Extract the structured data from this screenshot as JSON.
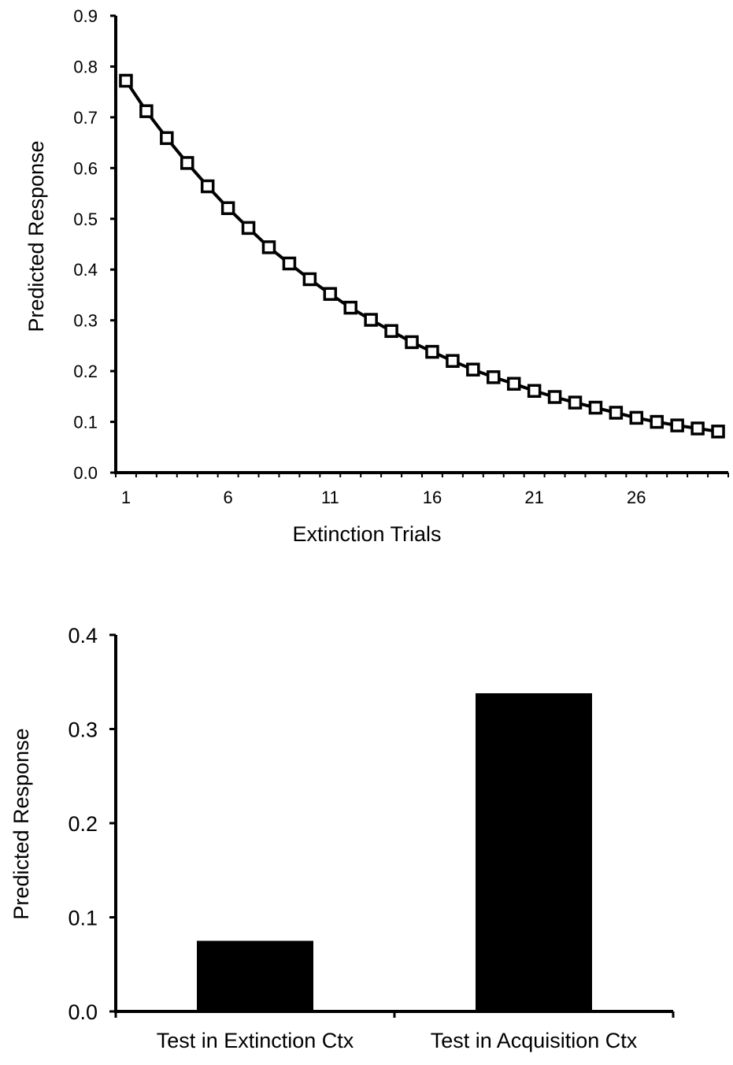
{
  "chart_data": [
    {
      "type": "line",
      "title": "",
      "xlabel": "Extinction Trials",
      "ylabel": "Predicted Response",
      "xlim": [
        0.5,
        30.5
      ],
      "ylim": [
        0,
        0.9
      ],
      "y_ticks": [
        "0.0",
        "0.1",
        "0.2",
        "0.3",
        "0.4",
        "0.5",
        "0.6",
        "0.7",
        "0.8",
        "0.9"
      ],
      "x_ticks": [
        "1",
        "6",
        "11",
        "16",
        "21",
        "26"
      ],
      "x_tick_values": [
        1,
        6,
        11,
        16,
        21,
        26
      ],
      "grid": false,
      "marker": "open-square",
      "color": "#000000",
      "series": [
        {
          "x": [
            1,
            2,
            3,
            4,
            5,
            6,
            7,
            8,
            9,
            10,
            11,
            12,
            13,
            14,
            15,
            16,
            17,
            18,
            19,
            20,
            21,
            22,
            23,
            24,
            25,
            26,
            27,
            28,
            29,
            30
          ],
          "values": [
            0.772,
            0.712,
            0.659,
            0.61,
            0.564,
            0.521,
            0.482,
            0.444,
            0.412,
            0.381,
            0.352,
            0.325,
            0.301,
            0.279,
            0.257,
            0.238,
            0.22,
            0.203,
            0.188,
            0.175,
            0.161,
            0.149,
            0.138,
            0.128,
            0.118,
            0.108,
            0.1,
            0.093,
            0.087,
            0.081
          ]
        }
      ]
    },
    {
      "type": "bar",
      "title": "",
      "xlabel": "",
      "ylabel": "Predicted Response",
      "ylim": [
        0,
        0.4
      ],
      "y_ticks": [
        "0.0",
        "0.1",
        "0.2",
        "0.3",
        "0.4"
      ],
      "grid": false,
      "color": "#000000",
      "categories": [
        "Test in Extinction Ctx",
        "Test in Acquisition Ctx"
      ],
      "values": [
        0.075,
        0.338
      ]
    }
  ]
}
